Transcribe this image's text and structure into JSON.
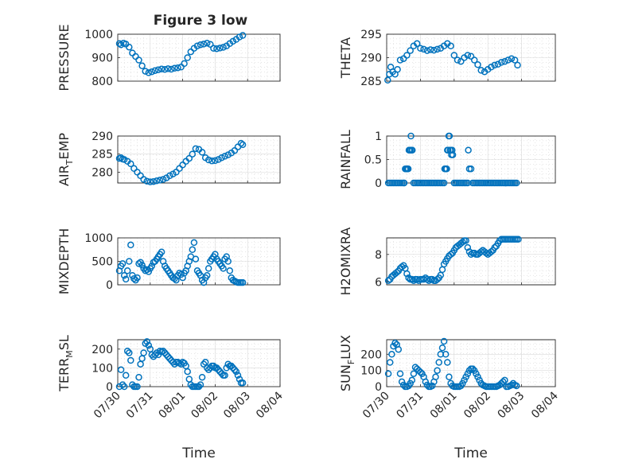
{
  "figure_title": "Figure 3 low",
  "chart_data": [
    {
      "type": "scatter",
      "ylabel": "PRESSURE",
      "ylabel_sub": "",
      "ylim": [
        800,
        1000
      ],
      "yticks": [
        800,
        900,
        1000
      ],
      "yticklabels": [
        "800",
        "900",
        "1000"
      ],
      "xlim": [
        0,
        5
      ],
      "xticks": [
        0,
        1,
        2,
        3,
        4,
        5
      ],
      "show_xticklabels": false,
      "grid": true,
      "minor_grid": true,
      "x": [
        0.05,
        0.1,
        0.18,
        0.25,
        0.35,
        0.45,
        0.55,
        0.65,
        0.75,
        0.85,
        0.95,
        1.05,
        1.15,
        1.25,
        1.35,
        1.45,
        1.55,
        1.65,
        1.75,
        1.85,
        1.95,
        2.05,
        2.15,
        2.25,
        2.35,
        2.45,
        2.55,
        2.65,
        2.75,
        2.85,
        2.95,
        3.05,
        3.15,
        3.25,
        3.35,
        3.45,
        3.55,
        3.65,
        3.75,
        3.85
      ],
      "y": [
        960,
        955,
        962,
        958,
        945,
        920,
        905,
        890,
        865,
        842,
        836,
        840,
        845,
        848,
        852,
        850,
        853,
        851,
        855,
        857,
        860,
        875,
        900,
        925,
        940,
        950,
        955,
        958,
        962,
        957,
        940,
        938,
        941,
        944,
        950,
        960,
        970,
        978,
        988,
        995
      ]
    },
    {
      "type": "scatter",
      "ylabel": "THETA",
      "ylabel_sub": "",
      "ylim": [
        285,
        295
      ],
      "yticks": [
        285,
        290,
        295
      ],
      "yticklabels": [
        "285",
        "290",
        "295"
      ],
      "xlim": [
        0,
        5
      ],
      "xticks": [
        0,
        1,
        2,
        3,
        4,
        5
      ],
      "show_xticklabels": false,
      "grid": true,
      "minor_grid": true,
      "x": [
        0.03,
        0.08,
        0.12,
        0.18,
        0.25,
        0.32,
        0.4,
        0.5,
        0.6,
        0.7,
        0.8,
        0.9,
        1.0,
        1.1,
        1.2,
        1.3,
        1.4,
        1.5,
        1.6,
        1.7,
        1.8,
        1.9,
        2.0,
        2.1,
        2.2,
        2.3,
        2.4,
        2.5,
        2.6,
        2.7,
        2.8,
        2.9,
        3.0,
        3.1,
        3.2,
        3.3,
        3.4,
        3.5,
        3.6,
        3.7,
        3.8,
        3.88
      ],
      "y": [
        285.2,
        286.5,
        288,
        287,
        286.5,
        287.5,
        289.5,
        289.8,
        290.5,
        291.5,
        292.5,
        293,
        292,
        291.8,
        291.5,
        291.7,
        291.6,
        291.8,
        292,
        292.5,
        293,
        292.5,
        290.5,
        289.5,
        289.2,
        290,
        290.5,
        290.3,
        289.5,
        288.5,
        287.3,
        287,
        287.5,
        288,
        288.4,
        288.6,
        289,
        289.2,
        289.5,
        289.8,
        289.5,
        288.4
      ]
    },
    {
      "type": "scatter",
      "ylabel": "AIR",
      "ylabel_sub": "T",
      "ylabel_suffix": "EMP",
      "ylim": [
        277,
        290
      ],
      "yticks": [
        280,
        285,
        290
      ],
      "yticklabels": [
        "280",
        "285",
        "290"
      ],
      "xlim": [
        0,
        5
      ],
      "xticks": [
        0,
        1,
        2,
        3,
        4,
        5
      ],
      "show_xticklabels": false,
      "grid": true,
      "minor_grid": true,
      "x": [
        0.05,
        0.1,
        0.15,
        0.2,
        0.3,
        0.4,
        0.5,
        0.6,
        0.7,
        0.8,
        0.9,
        1.0,
        1.1,
        1.2,
        1.3,
        1.4,
        1.5,
        1.6,
        1.7,
        1.8,
        1.9,
        2.0,
        2.1,
        2.2,
        2.3,
        2.4,
        2.5,
        2.6,
        2.7,
        2.8,
        2.9,
        3.0,
        3.1,
        3.2,
        3.3,
        3.4,
        3.5,
        3.6,
        3.7,
        3.8,
        3.85
      ],
      "y": [
        283.8,
        284,
        283.6,
        283.5,
        283,
        282.3,
        281,
        280,
        279,
        278,
        277.5,
        277.3,
        277.4,
        277.6,
        277.8,
        278,
        278.4,
        279,
        279.5,
        280,
        281,
        282,
        283,
        283.8,
        285,
        286.5,
        286.3,
        285.5,
        284,
        283.4,
        283.1,
        283.2,
        283.5,
        284,
        284.4,
        284.8,
        285.3,
        286,
        287,
        288,
        287.6
      ]
    },
    {
      "type": "scatter",
      "ylabel": "RAINFALL",
      "ylabel_sub": "",
      "ylim": [
        0,
        1
      ],
      "yticks": [
        0,
        0.5,
        1
      ],
      "yticklabels": [
        "0",
        "0.5",
        "1"
      ],
      "xlim": [
        0,
        5
      ],
      "xticks": [
        0,
        1,
        2,
        3,
        4,
        5
      ],
      "show_xticklabels": false,
      "grid": true,
      "minor_grid": true,
      "x": [
        0.05,
        0.1,
        0.15,
        0.2,
        0.25,
        0.3,
        0.35,
        0.4,
        0.45,
        0.5,
        0.52,
        0.55,
        0.58,
        0.6,
        0.62,
        0.64,
        0.66,
        0.68,
        0.7,
        0.72,
        0.74,
        0.76,
        0.8,
        0.85,
        0.9,
        0.95,
        1.0,
        1.05,
        1.1,
        1.15,
        1.2,
        1.25,
        1.3,
        1.35,
        1.4,
        1.45,
        1.5,
        1.55,
        1.6,
        1.65,
        1.7,
        1.72,
        1.74,
        1.76,
        1.78,
        1.8,
        1.82,
        1.84,
        1.86,
        1.88,
        1.9,
        1.92,
        1.94,
        1.96,
        2.0,
        2.05,
        2.1,
        2.15,
        2.2,
        2.25,
        2.3,
        2.35,
        2.4,
        2.42,
        2.45,
        2.5,
        2.55,
        2.6,
        2.65,
        2.7,
        2.75,
        2.8,
        2.85,
        2.9,
        2.95,
        3.0,
        3.05,
        3.1,
        3.15,
        3.2,
        3.25,
        3.3,
        3.35,
        3.4,
        3.45,
        3.5,
        3.55,
        3.6,
        3.65,
        3.7,
        3.75,
        3.8,
        3.85
      ],
      "y": [
        0,
        0,
        0,
        0,
        0,
        0,
        0,
        0,
        0,
        0,
        0,
        0.3,
        0.3,
        0.3,
        0.3,
        0.3,
        0.7,
        0.7,
        0.7,
        1.0,
        0.7,
        0.7,
        0,
        0,
        0,
        0,
        0,
        0,
        0,
        0,
        0,
        0,
        0,
        0,
        0,
        0,
        0,
        0,
        0,
        0,
        0,
        0.3,
        0.3,
        0.3,
        0.3,
        0.7,
        0.7,
        1.0,
        1.0,
        0.7,
        0.7,
        0.6,
        0.7,
        0.6,
        0,
        0,
        0,
        0,
        0,
        0,
        0,
        0,
        0,
        0.7,
        0.3,
        0.3,
        0,
        0,
        0,
        0,
        0,
        0,
        0,
        0,
        0,
        0,
        0,
        0,
        0,
        0,
        0,
        0,
        0,
        0,
        0,
        0,
        0,
        0,
        0,
        0,
        0,
        0,
        0
      ]
    },
    {
      "type": "scatter",
      "ylabel": "MIXDEPTH",
      "ylabel_sub": "",
      "ylim": [
        0,
        1000
      ],
      "yticks": [
        0,
        500,
        1000
      ],
      "yticklabels": [
        "0",
        "500",
        "1000"
      ],
      "xlim": [
        0,
        5
      ],
      "xticks": [
        0,
        1,
        2,
        3,
        4,
        5
      ],
      "show_xticklabels": false,
      "grid": true,
      "minor_grid": true,
      "x": [
        0.05,
        0.1,
        0.15,
        0.2,
        0.25,
        0.3,
        0.35,
        0.4,
        0.45,
        0.5,
        0.55,
        0.6,
        0.65,
        0.7,
        0.75,
        0.8,
        0.85,
        0.9,
        0.95,
        1.0,
        1.05,
        1.1,
        1.15,
        1.2,
        1.25,
        1.3,
        1.35,
        1.4,
        1.45,
        1.5,
        1.55,
        1.6,
        1.65,
        1.7,
        1.75,
        1.8,
        1.85,
        1.9,
        1.95,
        2.0,
        2.05,
        2.1,
        2.15,
        2.2,
        2.25,
        2.3,
        2.35,
        2.4,
        2.45,
        2.5,
        2.55,
        2.6,
        2.65,
        2.7,
        2.75,
        2.8,
        2.85,
        2.9,
        2.95,
        3.0,
        3.05,
        3.1,
        3.15,
        3.2,
        3.25,
        3.3,
        3.35,
        3.4,
        3.45,
        3.5,
        3.55,
        3.6,
        3.65,
        3.7,
        3.75,
        3.8,
        3.85
      ],
      "y": [
        300,
        400,
        450,
        200,
        120,
        300,
        500,
        850,
        200,
        130,
        100,
        150,
        450,
        480,
        420,
        350,
        300,
        320,
        280,
        350,
        400,
        480,
        500,
        550,
        600,
        650,
        700,
        500,
        400,
        350,
        300,
        250,
        200,
        150,
        130,
        100,
        200,
        250,
        220,
        150,
        250,
        300,
        400,
        500,
        600,
        750,
        900,
        550,
        300,
        250,
        200,
        100,
        50,
        150,
        200,
        350,
        500,
        550,
        600,
        650,
        550,
        500,
        450,
        400,
        350,
        550,
        600,
        500,
        300,
        150,
        100,
        80,
        60,
        50,
        50,
        50,
        50
      ]
    },
    {
      "type": "scatter",
      "ylabel": "H2OMIXRA",
      "ylabel_sub": "",
      "ylim": [
        5.8,
        9.2
      ],
      "yticks": [
        6,
        8
      ],
      "yticklabels": [
        "6",
        "8"
      ],
      "xlim": [
        0,
        5
      ],
      "xticks": [
        0,
        1,
        2,
        3,
        4,
        5
      ],
      "show_xticklabels": false,
      "grid": true,
      "minor_grid": true,
      "x": [
        0.05,
        0.1,
        0.15,
        0.2,
        0.25,
        0.3,
        0.35,
        0.4,
        0.45,
        0.5,
        0.55,
        0.6,
        0.65,
        0.7,
        0.75,
        0.8,
        0.85,
        0.9,
        0.95,
        1.0,
        1.05,
        1.1,
        1.15,
        1.2,
        1.25,
        1.3,
        1.35,
        1.4,
        1.45,
        1.5,
        1.55,
        1.6,
        1.65,
        1.7,
        1.75,
        1.8,
        1.85,
        1.9,
        1.95,
        2.0,
        2.05,
        2.1,
        2.15,
        2.2,
        2.25,
        2.3,
        2.35,
        2.4,
        2.45,
        2.5,
        2.55,
        2.6,
        2.65,
        2.7,
        2.75,
        2.8,
        2.85,
        2.9,
        2.95,
        3.0,
        3.05,
        3.1,
        3.15,
        3.2,
        3.25,
        3.3,
        3.35,
        3.4,
        3.45,
        3.5,
        3.55,
        3.6,
        3.65,
        3.7,
        3.75,
        3.8,
        3.85,
        3.9
      ],
      "y": [
        6.1,
        6.2,
        6.4,
        6.5,
        6.6,
        6.7,
        6.8,
        7.0,
        7.1,
        7.2,
        7.0,
        6.6,
        6.3,
        6.2,
        6.2,
        6.1,
        6.2,
        6.2,
        6.1,
        6.2,
        6.2,
        6.2,
        6.3,
        6.2,
        6.1,
        6.2,
        6.2,
        6.1,
        6.1,
        6.2,
        6.3,
        6.5,
        6.9,
        7.3,
        7.5,
        7.7,
        7.9,
        8.0,
        8.1,
        8.3,
        8.5,
        8.6,
        8.7,
        8.8,
        8.9,
        9.0,
        9.0,
        8.5,
        8.2,
        8.0,
        8.1,
        8.1,
        8.0,
        8.0,
        8.1,
        8.2,
        8.3,
        8.2,
        8.1,
        8.0,
        8.1,
        8.2,
        8.3,
        8.5,
        8.6,
        8.8,
        9.0,
        9.1,
        9.1,
        9.1,
        9.1,
        9.1,
        9.1,
        9.1,
        9.1,
        9.1,
        9.1,
        9.1
      ]
    },
    {
      "type": "scatter",
      "ylabel": "TERR",
      "ylabel_sub": "M",
      "ylabel_suffix": "SL",
      "ylim": [
        0,
        250
      ],
      "yticks": [
        0,
        100,
        200
      ],
      "yticklabels": [
        "0",
        "100",
        "200"
      ],
      "xlim": [
        0,
        5
      ],
      "xticks": [
        0,
        1,
        2,
        3,
        4,
        5
      ],
      "xticklabels": [
        "07/30",
        "07/31",
        "08/01",
        "08/02",
        "08/03",
        "08/04"
      ],
      "show_xticklabels": true,
      "xlabel": "Time",
      "grid": true,
      "minor_grid": true,
      "x": [
        0.05,
        0.1,
        0.15,
        0.2,
        0.25,
        0.3,
        0.35,
        0.4,
        0.45,
        0.5,
        0.55,
        0.6,
        0.65,
        0.7,
        0.75,
        0.8,
        0.85,
        0.9,
        0.95,
        1.0,
        1.05,
        1.1,
        1.15,
        1.2,
        1.25,
        1.3,
        1.35,
        1.4,
        1.45,
        1.5,
        1.55,
        1.6,
        1.65,
        1.7,
        1.75,
        1.8,
        1.85,
        1.9,
        1.95,
        2.0,
        2.05,
        2.1,
        2.15,
        2.2,
        2.25,
        2.3,
        2.35,
        2.4,
        2.45,
        2.5,
        2.55,
        2.6,
        2.65,
        2.7,
        2.75,
        2.8,
        2.85,
        2.9,
        2.95,
        3.0,
        3.05,
        3.1,
        3.15,
        3.2,
        3.25,
        3.3,
        3.35,
        3.4,
        3.45,
        3.5,
        3.55,
        3.6,
        3.65,
        3.7,
        3.75,
        3.8,
        3.85
      ],
      "y": [
        0,
        90,
        10,
        0,
        60,
        190,
        180,
        140,
        10,
        0,
        0,
        0,
        50,
        120,
        150,
        180,
        230,
        240,
        220,
        200,
        170,
        160,
        170,
        180,
        170,
        190,
        185,
        190,
        180,
        170,
        160,
        150,
        140,
        130,
        120,
        130,
        130,
        125,
        120,
        130,
        125,
        110,
        80,
        40,
        10,
        0,
        0,
        0,
        0,
        0,
        10,
        50,
        120,
        130,
        100,
        90,
        100,
        110,
        110,
        100,
        100,
        90,
        80,
        70,
        60,
        60,
        100,
        120,
        110,
        110,
        100,
        90,
        80,
        60,
        40,
        20,
        20
      ]
    },
    {
      "type": "scatter",
      "ylabel": "SUN",
      "ylabel_sub": "F",
      "ylabel_suffix": "LUX",
      "ylim": [
        0,
        290
      ],
      "yticks": [
        0,
        100,
        200
      ],
      "yticklabels": [
        "0",
        "100",
        "200"
      ],
      "xlim": [
        0,
        5
      ],
      "xticks": [
        0,
        1,
        2,
        3,
        4,
        5
      ],
      "xticklabels": [
        "07/30",
        "07/31",
        "08/01",
        "08/02",
        "08/03",
        "08/04"
      ],
      "show_xticklabels": true,
      "xlabel": "Time",
      "grid": true,
      "minor_grid": true,
      "x": [
        0.05,
        0.1,
        0.15,
        0.2,
        0.25,
        0.3,
        0.35,
        0.4,
        0.45,
        0.5,
        0.55,
        0.6,
        0.65,
        0.7,
        0.75,
        0.8,
        0.85,
        0.9,
        0.95,
        1.0,
        1.05,
        1.1,
        1.15,
        1.2,
        1.25,
        1.3,
        1.35,
        1.4,
        1.45,
        1.5,
        1.55,
        1.6,
        1.65,
        1.7,
        1.75,
        1.8,
        1.85,
        1.9,
        1.95,
        2.0,
        2.05,
        2.1,
        2.15,
        2.2,
        2.25,
        2.3,
        2.35,
        2.4,
        2.45,
        2.5,
        2.55,
        2.6,
        2.65,
        2.7,
        2.75,
        2.8,
        2.85,
        2.9,
        2.95,
        3.0,
        3.05,
        3.1,
        3.15,
        3.2,
        3.25,
        3.3,
        3.35,
        3.4,
        3.45,
        3.5,
        3.55,
        3.6,
        3.65,
        3.7,
        3.75,
        3.8,
        3.85
      ],
      "y": [
        80,
        150,
        200,
        250,
        270,
        260,
        230,
        80,
        30,
        10,
        0,
        0,
        5,
        20,
        40,
        80,
        120,
        110,
        100,
        90,
        80,
        60,
        30,
        10,
        0,
        0,
        5,
        30,
        60,
        100,
        150,
        200,
        240,
        280,
        200,
        150,
        60,
        20,
        5,
        0,
        0,
        0,
        0,
        5,
        20,
        40,
        60,
        80,
        100,
        110,
        110,
        100,
        80,
        60,
        40,
        20,
        10,
        5,
        0,
        0,
        0,
        0,
        0,
        0,
        0,
        5,
        10,
        20,
        30,
        40,
        0,
        0,
        5,
        10,
        20,
        10,
        5
      ]
    }
  ]
}
